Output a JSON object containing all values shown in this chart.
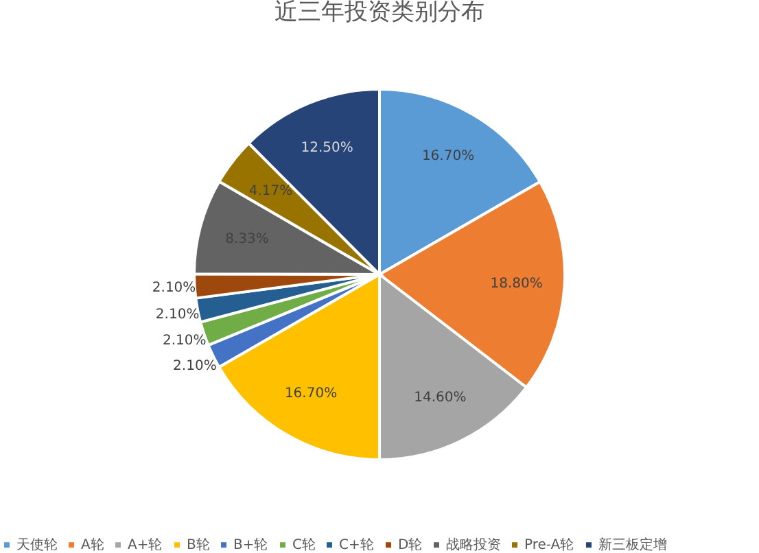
{
  "chart_data": {
    "type": "pie",
    "title": "近三年投资类别分布",
    "categories": [
      "天使轮",
      "A轮",
      "A+轮",
      "B轮",
      "B+轮",
      "C轮",
      "C+轮",
      "D轮",
      "战略投资",
      "Pre-A轮",
      "新三板定增"
    ],
    "values": [
      16.7,
      18.8,
      14.6,
      16.7,
      2.1,
      2.1,
      2.1,
      2.1,
      8.33,
      4.17,
      12.5
    ],
    "value_labels": [
      "16.70%",
      "18.80%",
      "14.60%",
      "16.70%",
      "2.10%",
      "2.10%",
      "2.10%",
      "2.10%",
      "8.33%",
      "4.17%",
      "12.50%"
    ],
    "colors": [
      "#5b9bd5",
      "#ed7d31",
      "#a5a5a5",
      "#ffc000",
      "#4472c4",
      "#70ad47",
      "#255e91",
      "#9e480e",
      "#636363",
      "#997300",
      "#264478"
    ],
    "legend": "bottom"
  }
}
